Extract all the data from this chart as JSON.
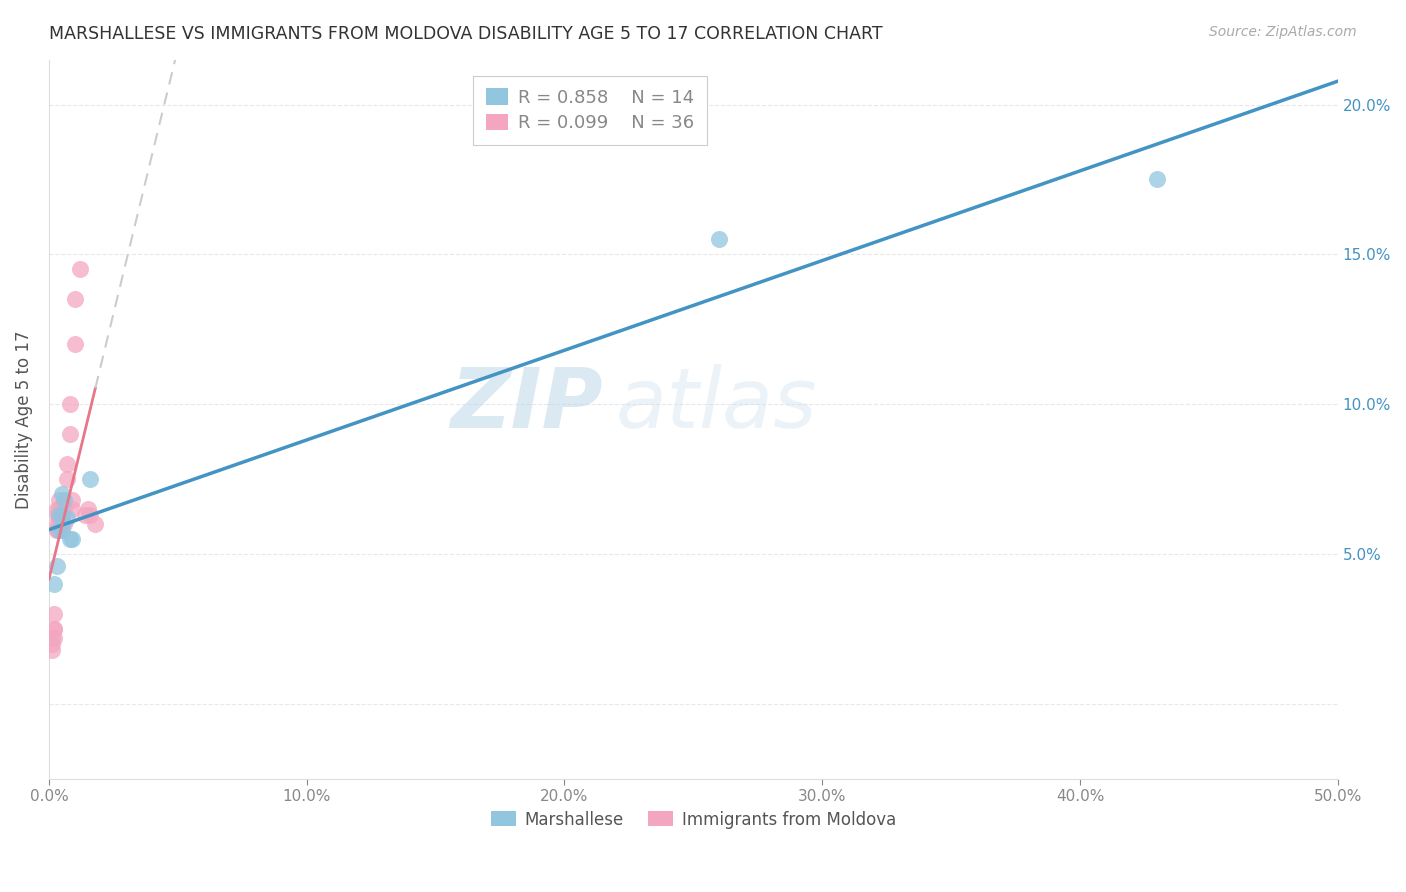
{
  "title": "MARSHALLESE VS IMMIGRANTS FROM MOLDOVA DISABILITY AGE 5 TO 17 CORRELATION CHART",
  "source": "Source: ZipAtlas.com",
  "ylabel": "Disability Age 5 to 17",
  "legend_label1": "Marshallese",
  "legend_label2": "Immigrants from Moldova",
  "R1": 0.858,
  "N1": 14,
  "R2": 0.099,
  "N2": 36,
  "color1": "#92c5de",
  "color2": "#f4a6c0",
  "line1_color": "#4393c3",
  "line2_color": "#e8768a",
  "dashed_line_color": "#cccccc",
  "watermark_zip": "ZIP",
  "watermark_atlas": "atlas",
  "xlim": [
    0.0,
    0.5
  ],
  "ylim": [
    -0.025,
    0.215
  ],
  "xticks": [
    0.0,
    0.1,
    0.2,
    0.3,
    0.4,
    0.5
  ],
  "yticks": [
    0.0,
    0.05,
    0.1,
    0.15,
    0.2
  ],
  "ytick_labels_right": [
    "",
    "5.0%",
    "10.0%",
    "15.0%",
    "20.0%"
  ],
  "xtick_labels": [
    "0.0%",
    "10.0%",
    "20.0%",
    "30.0%",
    "40.0%",
    "50.0%"
  ],
  "marshallese_x": [
    0.002,
    0.003,
    0.004,
    0.004,
    0.005,
    0.005,
    0.005,
    0.006,
    0.007,
    0.008,
    0.009,
    0.016,
    0.26,
    0.43
  ],
  "marshallese_y": [
    0.04,
    0.046,
    0.063,
    0.058,
    0.07,
    0.063,
    0.058,
    0.068,
    0.062,
    0.055,
    0.055,
    0.075,
    0.155,
    0.175
  ],
  "moldova_x": [
    0.001,
    0.001,
    0.001,
    0.002,
    0.002,
    0.002,
    0.002,
    0.003,
    0.003,
    0.003,
    0.003,
    0.003,
    0.004,
    0.004,
    0.004,
    0.004,
    0.005,
    0.005,
    0.005,
    0.005,
    0.005,
    0.006,
    0.006,
    0.007,
    0.007,
    0.008,
    0.008,
    0.009,
    0.009,
    0.01,
    0.01,
    0.012,
    0.014,
    0.015,
    0.016,
    0.018
  ],
  "moldova_y": [
    0.02,
    0.018,
    0.022,
    0.025,
    0.022,
    0.03,
    0.025,
    0.058,
    0.06,
    0.063,
    0.065,
    0.058,
    0.063,
    0.06,
    0.065,
    0.068,
    0.06,
    0.063,
    0.065,
    0.06,
    0.063,
    0.06,
    0.065,
    0.08,
    0.075,
    0.1,
    0.09,
    0.065,
    0.068,
    0.12,
    0.135,
    0.145,
    0.063,
    0.065,
    0.063,
    0.06
  ],
  "background_color": "#ffffff",
  "grid_color": "#e8e8e8"
}
